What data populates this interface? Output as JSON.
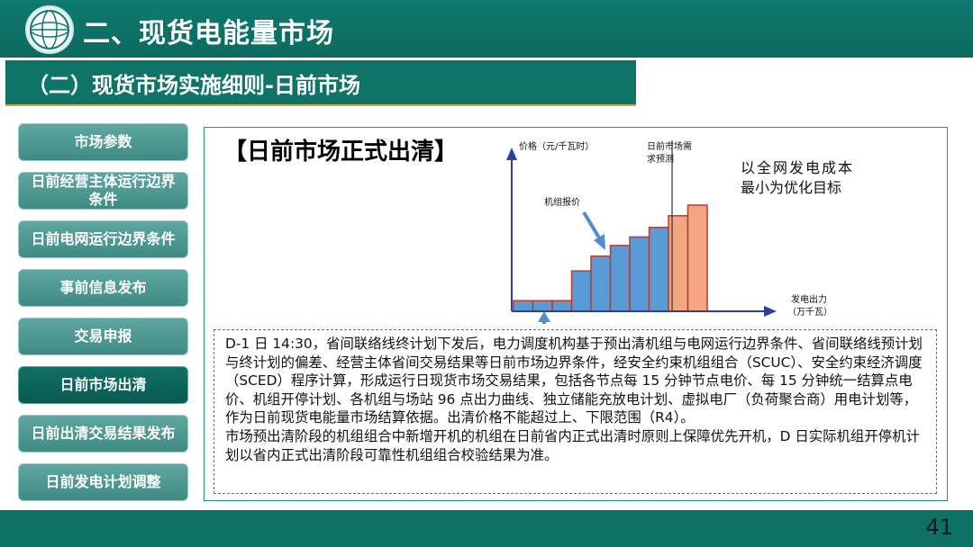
{
  "header": {
    "title": "二、现货电能量市场"
  },
  "subheader": {
    "title": "（二）现货市场实施细则-日前市场"
  },
  "nav": [
    {
      "label": "市场参数",
      "active": false
    },
    {
      "label": "日前经营主体运行边界条件",
      "active": false
    },
    {
      "label": "日前电网运行边界条件",
      "active": false
    },
    {
      "label": "事前信息发布",
      "active": false
    },
    {
      "label": "交易申报",
      "active": false
    },
    {
      "label": "日前市场出清",
      "active": true
    },
    {
      "label": "日前出清交易结果发布",
      "active": false
    },
    {
      "label": "日前发电计划调整",
      "active": false
    }
  ],
  "content": {
    "heading": "【日前市场正式出清】",
    "objective_line1": "以全网发电成本",
    "objective_line2": "最小为优化目标",
    "paragraph1": "D-1 日 14:30，省间联络线终计划下发后，电力调度机构基于预出清机组与电网运行边界条件、省间联络线预计划与终计划的偏差、经营主体省间交易结果等日前市场边界条件，经安全约束机组组合（SCUC）、安全约束经济调度（SCED）程序计算，形成运行日现货市场交易结果，包括各节点每 15 分钟节点电价、每 15 分钟统一结算点电价、机组开停计划、各机组与场站 96 点出力曲线、独立储能充放电计划、虚拟电厂（负荷聚合商）用电计划等，作为日前现货电能量市场结算依据。出清价格不能超过上、下限范围（R4）。",
    "paragraph2": "市场预出清阶段的机组组合中新增开机的机组在日前省内正式出清时原则上保障优先开机，D 日实际机组开停机计划以省内正式出清阶段可靠性机组组合校验结果为准。"
  },
  "chart_data": {
    "type": "bar",
    "ylabel": "价格（元/千瓦时）",
    "xlabel_line1": "发电出力",
    "xlabel_line2": "（万千瓦）",
    "demand_label_line1": "日前市场需",
    "demand_label_line2": "求预测",
    "bid_label": "机组报价",
    "values": [
      1,
      1,
      1,
      3.8,
      5.2,
      6.2,
      7,
      7.9,
      9,
      10
    ],
    "cleared_bars": 8,
    "colors": {
      "uncleared": "#5b9bd5",
      "cleared": "#f4a582",
      "edge": "#c0392b",
      "axis": "#2f3f9f",
      "arrow": "#4f8fd0"
    }
  },
  "footer": {
    "page": "41"
  }
}
